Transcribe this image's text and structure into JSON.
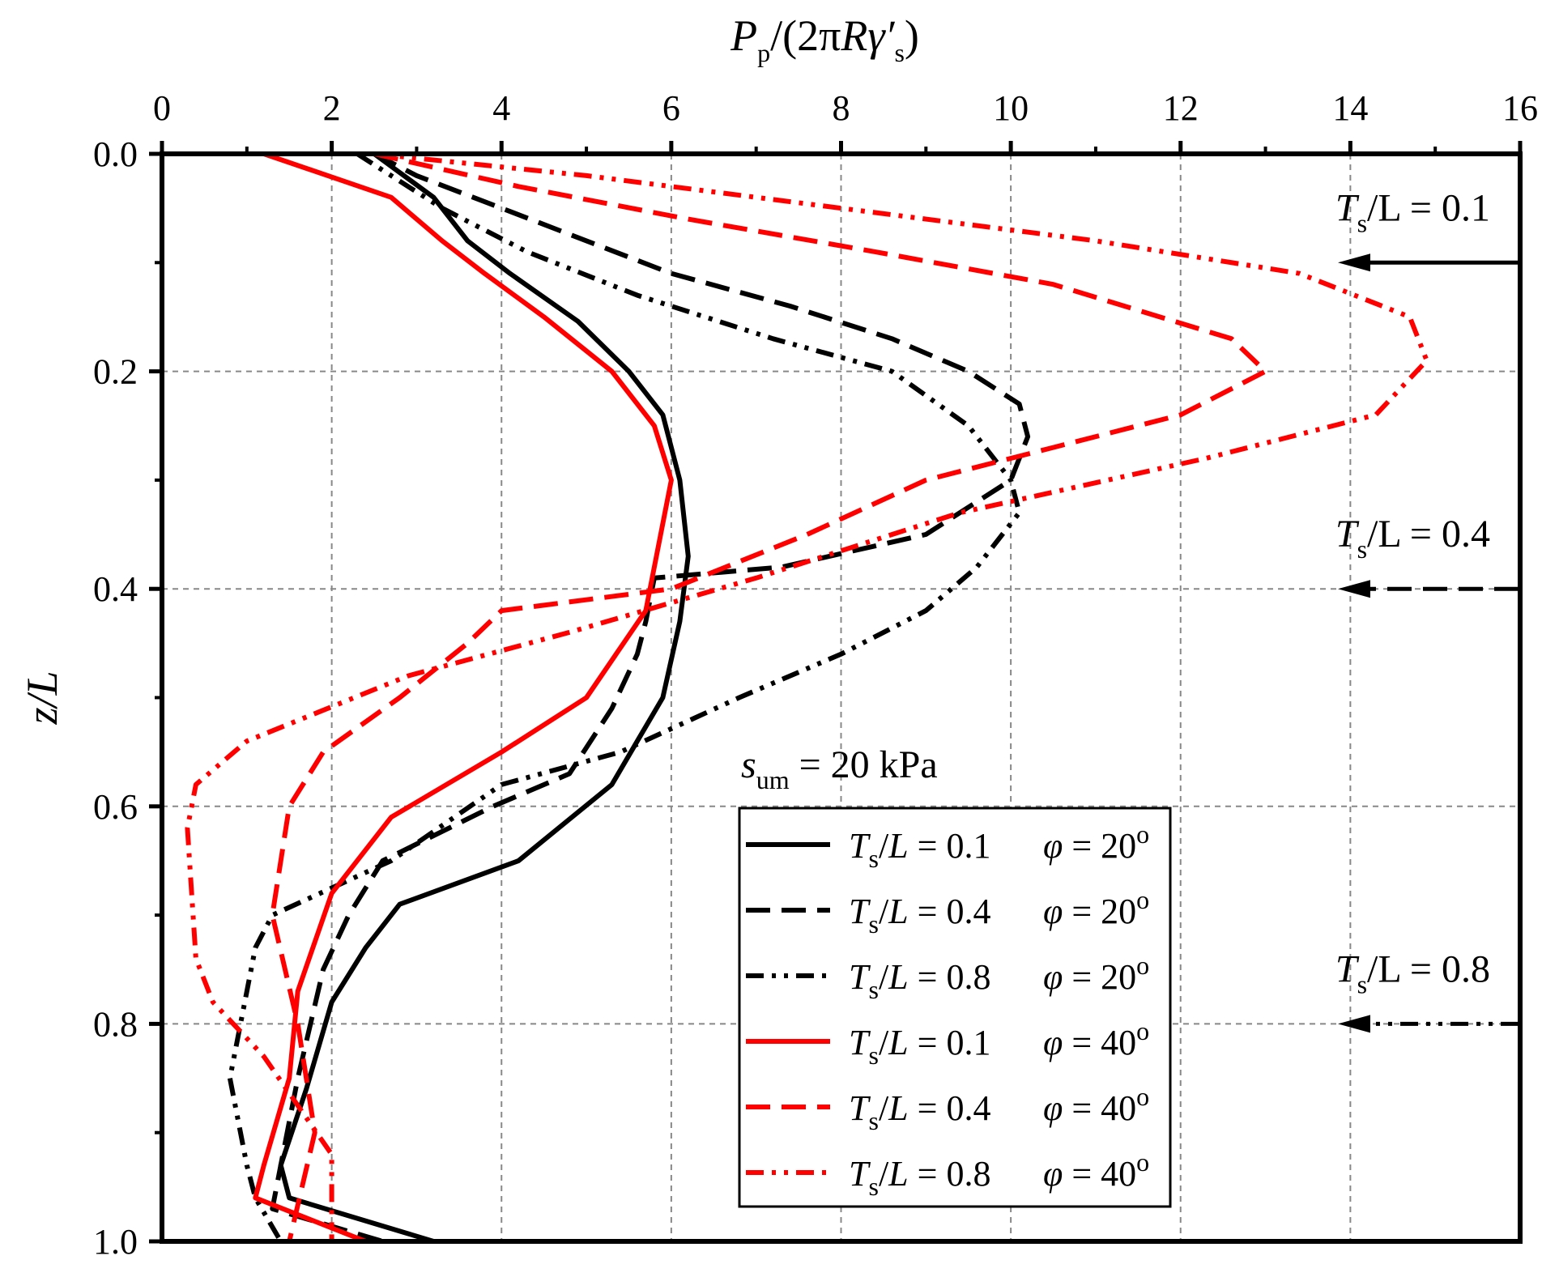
{
  "chart_data": {
    "type": "line",
    "xlabel": "Pp/(2πRγ′s)",
    "xlabel_parts": {
      "main": "P",
      "sub1": "p",
      "mid": "/(2π",
      "R": "R",
      "gamma": "γ′",
      "sub2": "s",
      "close": ")"
    },
    "ylabel": "z/L",
    "xlim": [
      0,
      16
    ],
    "ylim": [
      0.0,
      1.0
    ],
    "y_inverted": true,
    "x_axis_position": "top",
    "x_ticks": [
      "0",
      "2",
      "4",
      "6",
      "8",
      "10",
      "12",
      "14",
      "16"
    ],
    "y_ticks": [
      "0.0",
      "0.2",
      "0.4",
      "0.6",
      "0.8",
      "1.0"
    ],
    "grid": true,
    "legend_position": "bottom-right",
    "annotation_text": "sum = 20 kPa",
    "annotation_parts": {
      "s": "s",
      "sub": "um",
      "rest": " = 20 kPa"
    },
    "arrows": [
      {
        "label": "Ts/L = 0.1",
        "parts": {
          "T": "T",
          "sub": "s",
          "rest": "/L = 0.1"
        },
        "y": 0.1,
        "style": "solid"
      },
      {
        "label": "Ts/L = 0.4",
        "parts": {
          "T": "T",
          "sub": "s",
          "rest": "/L = 0.4"
        },
        "y": 0.4,
        "style": "dash"
      },
      {
        "label": "Ts/L = 0.8",
        "parts": {
          "T": "T",
          "sub": "s",
          "rest": "/L = 0.8"
        },
        "y": 0.8,
        "style": "dashdotdot"
      }
    ],
    "series": [
      {
        "name": "Ts/L = 0.1   φ = 20°",
        "legend": {
          "ts": "0.1",
          "phi": "20"
        },
        "color": "#000000",
        "style": "solid",
        "x": [
          2.5,
          3.2,
          3.6,
          4.1,
          4.9,
          5.5,
          5.9,
          6.1,
          6.2,
          6.1,
          5.9,
          5.6,
          5.3,
          4.2,
          2.8,
          2.4,
          2.0,
          1.7,
          1.4,
          1.5,
          3.2
        ],
        "y": [
          0.0,
          0.04,
          0.08,
          0.11,
          0.154,
          0.2,
          0.24,
          0.3,
          0.37,
          0.43,
          0.5,
          0.54,
          0.58,
          0.65,
          0.69,
          0.73,
          0.78,
          0.86,
          0.93,
          0.96,
          1.0
        ]
      },
      {
        "name": "Ts/L = 0.4   φ = 20°",
        "legend": {
          "ts": "0.4",
          "phi": "20"
        },
        "color": "#000000",
        "style": "dash",
        "x": [
          2.5,
          3.0,
          4.0,
          5.0,
          6.0,
          7.4,
          8.6,
          9.5,
          10.1,
          10.2,
          10.0,
          9.0,
          7.3,
          5.8,
          5.7,
          5.6,
          5.3,
          4.8,
          3.9,
          2.6,
          2.2,
          1.9,
          1.6,
          1.4,
          1.3,
          2.6
        ],
        "y": [
          0.0,
          0.02,
          0.05,
          0.08,
          0.11,
          0.14,
          0.17,
          0.2,
          0.23,
          0.26,
          0.3,
          0.35,
          0.38,
          0.39,
          0.43,
          0.46,
          0.51,
          0.57,
          0.6,
          0.65,
          0.7,
          0.75,
          0.85,
          0.93,
          0.97,
          1.0
        ]
      },
      {
        "name": "Ts/L = 0.8   φ = 20°",
        "legend": {
          "ts": "0.8",
          "phi": "20"
        },
        "color": "#000000",
        "style": "dashdotdot",
        "x": [
          2.3,
          2.7,
          3.3,
          4.3,
          5.6,
          7.2,
          8.6,
          9.5,
          10.0,
          10.1,
          9.6,
          9.0,
          8.0,
          6.8,
          5.4,
          4.0,
          2.7,
          1.3,
          1.1,
          0.8,
          1.0,
          1.1,
          1.4
        ],
        "y": [
          0.0,
          0.02,
          0.05,
          0.09,
          0.13,
          0.17,
          0.2,
          0.25,
          0.3,
          0.33,
          0.38,
          0.42,
          0.46,
          0.5,
          0.55,
          0.58,
          0.65,
          0.7,
          0.73,
          0.85,
          0.93,
          0.96,
          1.0
        ]
      },
      {
        "name": "Ts/L = 0.1   φ = 40°",
        "legend": {
          "ts": "0.1",
          "phi": "40"
        },
        "color": "#ff0000",
        "style": "solid",
        "x": [
          1.2,
          2.7,
          3.3,
          3.8,
          4.5,
          5.3,
          5.8,
          6.0,
          5.9,
          5.7,
          5.0,
          4.0,
          2.7,
          2.0,
          1.6,
          1.5,
          1.2,
          1.1,
          2.4
        ],
        "y": [
          0.0,
          0.04,
          0.08,
          0.11,
          0.15,
          0.2,
          0.25,
          0.3,
          0.34,
          0.42,
          0.5,
          0.55,
          0.61,
          0.68,
          0.77,
          0.85,
          0.93,
          0.96,
          1.0
        ]
      },
      {
        "name": "Ts/L = 0.4   φ = 40°",
        "legend": {
          "ts": "0.4",
          "phi": "40"
        },
        "color": "#ff0000",
        "style": "dash",
        "x": [
          2.5,
          4.2,
          6.2,
          8.4,
          10.5,
          12.6,
          13.0,
          12.0,
          10.5,
          9.0,
          7.6,
          6.0,
          4.0,
          3.6,
          2.8,
          1.9,
          1.5,
          1.3,
          1.6,
          1.8,
          1.5
        ],
        "y": [
          0.0,
          0.03,
          0.06,
          0.09,
          0.12,
          0.17,
          0.2,
          0.24,
          0.27,
          0.3,
          0.35,
          0.4,
          0.42,
          0.45,
          0.5,
          0.55,
          0.6,
          0.7,
          0.8,
          0.9,
          1.0
        ]
      },
      {
        "name": "Ts/L = 0.8   φ = 40°",
        "legend": {
          "ts": "0.8",
          "phi": "40"
        },
        "color": "#ff0000",
        "style": "dashdotdot",
        "x": [
          2.5,
          5.0,
          8.0,
          11.0,
          13.4,
          14.7,
          14.9,
          14.3,
          12.3,
          9.4,
          7.0,
          4.8,
          2.9,
          1.0,
          0.4,
          0.3,
          0.4,
          0.6,
          1.2,
          2.0,
          2.0
        ],
        "y": [
          0.0,
          0.02,
          0.05,
          0.08,
          0.11,
          0.15,
          0.19,
          0.24,
          0.28,
          0.33,
          0.39,
          0.44,
          0.48,
          0.54,
          0.58,
          0.62,
          0.74,
          0.78,
          0.83,
          0.92,
          1.0
        ]
      }
    ]
  }
}
